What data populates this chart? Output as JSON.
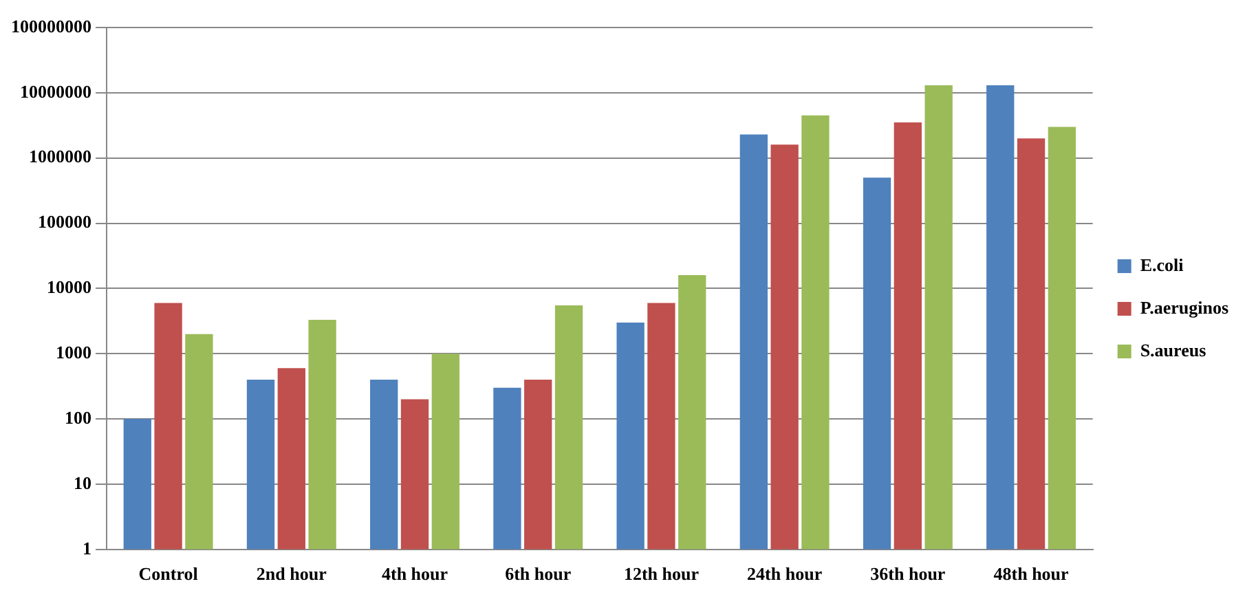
{
  "chart_data": {
    "type": "bar",
    "categories": [
      "Control",
      "2nd hour",
      "4th hour",
      "6th hour",
      "12th hour",
      "24th hour",
      "36th hour",
      "48th hour"
    ],
    "series": [
      {
        "name": "E.coli",
        "color": "#4f81bd",
        "values": [
          100,
          400,
          400,
          300,
          3000,
          2300000,
          500000,
          13000000
        ]
      },
      {
        "name": "P.aeruginos",
        "color": "#c0504d",
        "values": [
          6000,
          600,
          200,
          400,
          6000,
          1600000,
          3500000,
          2000000
        ]
      },
      {
        "name": "S.aureus",
        "color": "#9bbb59",
        "values": [
          2000,
          3300,
          1000,
          5500,
          16000,
          4500000,
          13000000,
          3000000
        ]
      }
    ],
    "log": "y",
    "ylim": [
      1,
      100000000
    ],
    "yticks": [
      1,
      10,
      100,
      1000,
      10000,
      100000,
      1000000,
      10000000,
      100000000
    ],
    "grid": "y",
    "legend": "right"
  }
}
